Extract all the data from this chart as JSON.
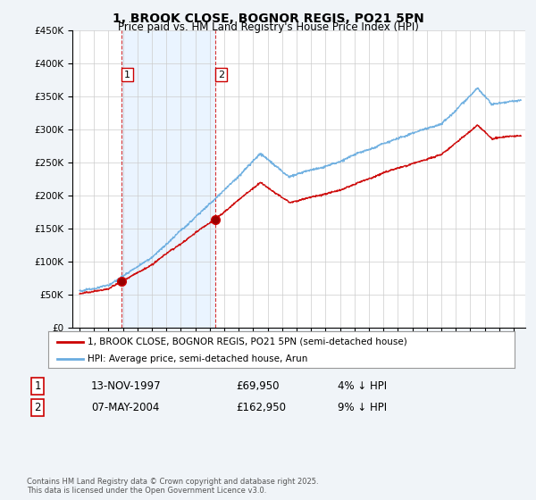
{
  "title": "1, BROOK CLOSE, BOGNOR REGIS, PO21 5PN",
  "subtitle": "Price paid vs. HM Land Registry's House Price Index (HPI)",
  "legend_line1": "1, BROOK CLOSE, BOGNOR REGIS, PO21 5PN (semi-detached house)",
  "legend_line2": "HPI: Average price, semi-detached house, Arun",
  "transaction1_label": "1",
  "transaction1_date": "13-NOV-1997",
  "transaction1_price": "£69,950",
  "transaction1_hpi": "4% ↓ HPI",
  "transaction2_label": "2",
  "transaction2_date": "07-MAY-2004",
  "transaction2_price": "£162,950",
  "transaction2_hpi": "9% ↓ HPI",
  "footer": "Contains HM Land Registry data © Crown copyright and database right 2025.\nThis data is licensed under the Open Government Licence v3.0.",
  "transaction1_x": 1997.87,
  "transaction1_y": 69950,
  "transaction2_x": 2004.35,
  "transaction2_y": 162950,
  "hpi_color": "#6aade0",
  "price_color": "#cc0000",
  "vline_color": "#cc0000",
  "shade_color": "#ddeeff",
  "background_color": "#f0f4f8",
  "plot_bg_color": "#ffffff",
  "ylim": [
    0,
    450000
  ],
  "xlim_start": 1994.5,
  "xlim_end": 2025.8,
  "yticks": [
    0,
    50000,
    100000,
    150000,
    200000,
    250000,
    300000,
    350000,
    400000,
    450000
  ]
}
